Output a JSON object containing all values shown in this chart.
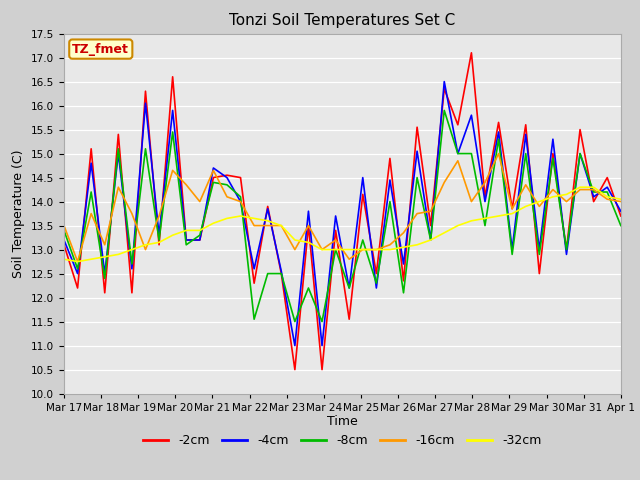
{
  "title": "Tonzi Soil Temperatures Set C",
  "xlabel": "Time",
  "ylabel": "Soil Temperature (C)",
  "ylim": [
    10.0,
    17.5
  ],
  "yticks": [
    10.0,
    10.5,
    11.0,
    11.5,
    12.0,
    12.5,
    13.0,
    13.5,
    14.0,
    14.5,
    15.0,
    15.5,
    16.0,
    16.5,
    17.0,
    17.5
  ],
  "xtick_labels": [
    "Mar 17",
    "Mar 18",
    "Mar 19",
    "Mar 20",
    "Mar 21",
    "Mar 22",
    "Mar 23",
    "Mar 24",
    "Mar 25",
    "Mar 26",
    "Mar 27",
    "Mar 28",
    "Mar 29",
    "Mar 30",
    "Mar 31",
    "Apr 1"
  ],
  "legend_labels": [
    "-2cm",
    "-4cm",
    "-8cm",
    "-16cm",
    "-32cm"
  ],
  "legend_colors": [
    "#ff0000",
    "#0000ff",
    "#00bb00",
    "#ff9900",
    "#ffff00"
  ],
  "annotation_text": "TZ_fmet",
  "annotation_bg": "#ffffcc",
  "annotation_border": "#cc8800",
  "annotation_text_color": "#cc0000",
  "fig_bg": "#d0d0d0",
  "plot_bg": "#e8e8e8",
  "grid_color": "#ffffff",
  "series_minus2cm": [
    13.1,
    12.2,
    15.1,
    12.1,
    15.4,
    12.1,
    16.3,
    13.1,
    16.6,
    13.2,
    13.2,
    14.5,
    14.55,
    14.5,
    12.3,
    13.9,
    12.5,
    10.5,
    13.5,
    10.5,
    13.4,
    11.55,
    14.15,
    12.5,
    14.9,
    12.35,
    15.55,
    13.5,
    16.35,
    15.6,
    17.1,
    14.1,
    15.65,
    13.85,
    15.6,
    12.5,
    15.0,
    13.0,
    15.5,
    14.0,
    14.5,
    13.7
  ],
  "series_minus4cm": [
    13.2,
    12.5,
    14.8,
    12.5,
    15.0,
    12.6,
    16.05,
    13.3,
    15.9,
    13.2,
    13.2,
    14.7,
    14.5,
    14.0,
    12.6,
    13.85,
    12.55,
    11.0,
    13.8,
    11.0,
    13.7,
    12.2,
    14.5,
    12.2,
    14.45,
    12.7,
    15.05,
    13.2,
    16.5,
    15.0,
    15.8,
    14.0,
    15.45,
    13.0,
    15.4,
    13.0,
    15.3,
    12.9,
    15.0,
    14.1,
    14.3,
    13.8
  ],
  "series_minus8cm": [
    13.4,
    12.6,
    14.2,
    12.4,
    15.1,
    12.7,
    15.1,
    13.2,
    15.45,
    13.1,
    13.3,
    14.4,
    14.35,
    14.1,
    11.55,
    12.5,
    12.5,
    11.5,
    12.2,
    11.5,
    13.0,
    12.2,
    13.2,
    12.3,
    14.0,
    12.1,
    14.5,
    13.2,
    15.9,
    15.0,
    15.0,
    13.5,
    15.3,
    12.9,
    15.0,
    12.9,
    14.9,
    13.0,
    15.0,
    14.2,
    14.2,
    13.5
  ],
  "series_minus16cm": [
    13.5,
    12.75,
    13.75,
    13.1,
    14.3,
    13.75,
    13.0,
    13.7,
    14.65,
    14.35,
    14.0,
    14.65,
    14.1,
    14.0,
    13.5,
    13.5,
    13.5,
    13.0,
    13.5,
    13.0,
    13.2,
    12.8,
    13.0,
    13.0,
    13.1,
    13.35,
    13.75,
    13.8,
    14.4,
    14.85,
    14.0,
    14.4,
    15.0,
    13.85,
    14.35,
    13.9,
    14.25,
    14.0,
    14.25,
    14.25,
    14.05,
    14.0
  ],
  "series_minus32cm": [
    12.8,
    12.75,
    12.8,
    12.85,
    12.9,
    13.0,
    13.1,
    13.15,
    13.3,
    13.4,
    13.4,
    13.55,
    13.65,
    13.7,
    13.65,
    13.6,
    13.5,
    13.2,
    13.15,
    13.0,
    13.0,
    13.0,
    13.0,
    13.0,
    13.0,
    13.05,
    13.1,
    13.2,
    13.35,
    13.5,
    13.6,
    13.65,
    13.7,
    13.75,
    13.9,
    14.0,
    14.1,
    14.15,
    14.3,
    14.3,
    14.1,
    14.05
  ]
}
